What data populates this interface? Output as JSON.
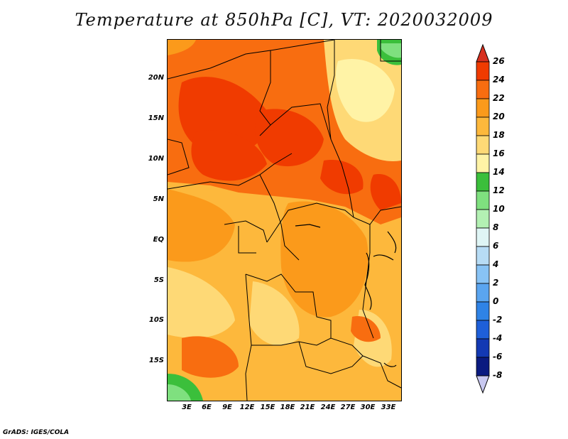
{
  "title": "Temperature at 850hPa [C], VT: 2020032009",
  "credit": "GrADS: IGES/COLA",
  "lat_labels": [
    "20N",
    "15N",
    "10N",
    "5N",
    "EQ",
    "5S",
    "10S",
    "15S"
  ],
  "lon_labels": [
    "3E",
    "6E",
    "9E",
    "12E",
    "15E",
    "18E",
    "21E",
    "24E",
    "27E",
    "30E",
    "33E"
  ],
  "colorbar": {
    "labels": [
      "26",
      "24",
      "22",
      "20",
      "18",
      "16",
      "14",
      "12",
      "10",
      "8",
      "6",
      "4",
      "2",
      "0",
      "-2",
      "-4",
      "-6",
      "-8"
    ],
    "colors": [
      "#d7301f",
      "#f03b00",
      "#f86d10",
      "#fb9a1b",
      "#fdb83c",
      "#fed976",
      "#fff3a6",
      "#3bbf3b",
      "#7fe07f",
      "#b3f0b3",
      "#dff5f5",
      "#b7dcf5",
      "#88c3f5",
      "#5aa5f0",
      "#2f83e6",
      "#1e5fd9",
      "#1339b3",
      "#0a1a80",
      "#c8c8f0"
    ]
  }
}
